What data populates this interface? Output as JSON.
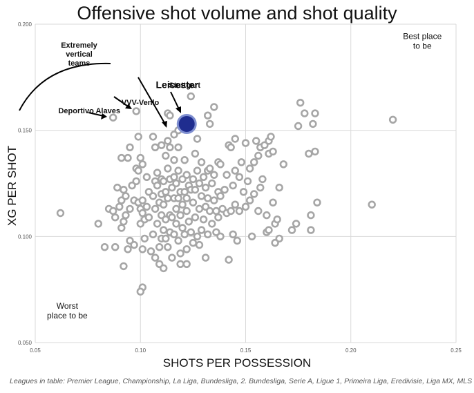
{
  "chart_data": {
    "type": "scatter",
    "title": "Offensive shot volume and shot quality",
    "xlabel": "SHOTS PER POSSESSION",
    "ylabel": "XG PER SHOT",
    "xlim": [
      0.05,
      0.25
    ],
    "ylim": [
      0.05,
      0.2
    ],
    "x_ticks": [
      0.05,
      0.1,
      0.15,
      0.2,
      0.25
    ],
    "x_tick_labels": [
      "0.05",
      "0.10",
      "0.15",
      "0.20",
      "0.25"
    ],
    "y_ticks": [
      0.05,
      0.1,
      0.15,
      0.2
    ],
    "y_tick_labels": [
      "0.050",
      "0.100",
      "0.150",
      "0.200"
    ],
    "grid": true,
    "colors": {
      "points": "#a6a6a6",
      "highlight_fill": "#1f2d8f",
      "highlight_stroke": "#7f8fd0",
      "grid": "#d9d9d9"
    },
    "highlight": {
      "label": "Leicester",
      "x": 0.122,
      "y": 0.153
    },
    "annotations": [
      {
        "text": "Stuttgart",
        "x": 0.121,
        "y": 0.17
      },
      {
        "text": "VVV-Venlo",
        "x": 0.091,
        "y": 0.162
      },
      {
        "text": "Deportivo Alaves",
        "x": 0.061,
        "y": 0.158
      },
      {
        "text": "Extremely vertical teams",
        "lines": [
          "Extremely",
          "vertical",
          "teams"
        ],
        "x": 0.061,
        "y": 0.189
      },
      {
        "text": "Best place to be",
        "lines": [
          "Best place",
          "to be"
        ],
        "x": 0.234,
        "y": 0.193
      },
      {
        "text": "Worst place to be",
        "lines": [
          "Worst",
          "place to be"
        ],
        "x": 0.058,
        "y": 0.066
      }
    ],
    "points": [
      [
        0.062,
        0.111
      ],
      [
        0.08,
        0.106
      ],
      [
        0.083,
        0.095
      ],
      [
        0.085,
        0.113
      ],
      [
        0.087,
        0.112
      ],
      [
        0.087,
        0.156
      ],
      [
        0.088,
        0.109
      ],
      [
        0.088,
        0.095
      ],
      [
        0.089,
        0.123
      ],
      [
        0.09,
        0.114
      ],
      [
        0.091,
        0.117
      ],
      [
        0.091,
        0.104
      ],
      [
        0.091,
        0.137
      ],
      [
        0.092,
        0.122
      ],
      [
        0.092,
        0.107
      ],
      [
        0.092,
        0.086
      ],
      [
        0.093,
        0.119
      ],
      [
        0.093,
        0.11
      ],
      [
        0.094,
        0.094
      ],
      [
        0.094,
        0.137
      ],
      [
        0.095,
        0.113
      ],
      [
        0.095,
        0.098
      ],
      [
        0.095,
        0.142
      ],
      [
        0.096,
        0.124
      ],
      [
        0.097,
        0.117
      ],
      [
        0.097,
        0.096
      ],
      [
        0.098,
        0.132
      ],
      [
        0.098,
        0.126
      ],
      [
        0.098,
        0.159
      ],
      [
        0.099,
        0.147
      ],
      [
        0.099,
        0.131
      ],
      [
        0.099,
        0.116
      ],
      [
        0.1,
        0.106
      ],
      [
        0.1,
        0.113
      ],
      [
        0.1,
        0.137
      ],
      [
        0.101,
        0.111
      ],
      [
        0.101,
        0.134
      ],
      [
        0.101,
        0.094
      ],
      [
        0.101,
        0.117
      ],
      [
        0.101,
        0.076
      ],
      [
        0.1,
        0.074
      ],
      [
        0.102,
        0.108
      ],
      [
        0.102,
        0.099
      ],
      [
        0.103,
        0.114
      ],
      [
        0.103,
        0.128
      ],
      [
        0.104,
        0.121
      ],
      [
        0.104,
        0.109
      ],
      [
        0.105,
        0.093
      ],
      [
        0.106,
        0.119
      ],
      [
        0.106,
        0.101
      ],
      [
        0.106,
        0.147
      ],
      [
        0.107,
        0.126
      ],
      [
        0.107,
        0.113
      ],
      [
        0.107,
        0.09
      ],
      [
        0.107,
        0.142
      ],
      [
        0.108,
        0.13
      ],
      [
        0.108,
        0.106
      ],
      [
        0.108,
        0.124
      ],
      [
        0.109,
        0.116
      ],
      [
        0.109,
        0.095
      ],
      [
        0.109,
        0.087
      ],
      [
        0.11,
        0.127
      ],
      [
        0.11,
        0.12
      ],
      [
        0.11,
        0.11
      ],
      [
        0.11,
        0.099
      ],
      [
        0.11,
        0.143
      ],
      [
        0.111,
        0.126
      ],
      [
        0.111,
        0.115
      ],
      [
        0.111,
        0.103
      ],
      [
        0.111,
        0.085
      ],
      [
        0.112,
        0.138
      ],
      [
        0.112,
        0.121
      ],
      [
        0.112,
        0.108
      ],
      [
        0.112,
        0.099
      ],
      [
        0.113,
        0.132
      ],
      [
        0.113,
        0.118
      ],
      [
        0.113,
        0.095
      ],
      [
        0.113,
        0.158
      ],
      [
        0.113,
        0.145
      ],
      [
        0.114,
        0.127
      ],
      [
        0.114,
        0.11
      ],
      [
        0.114,
        0.102
      ],
      [
        0.114,
        0.157
      ],
      [
        0.114,
        0.142
      ],
      [
        0.115,
        0.123
      ],
      [
        0.115,
        0.109
      ],
      [
        0.115,
        0.09
      ],
      [
        0.116,
        0.136
      ],
      [
        0.116,
        0.128
      ],
      [
        0.116,
        0.118
      ],
      [
        0.116,
        0.101
      ],
      [
        0.116,
        0.148
      ],
      [
        0.117,
        0.125
      ],
      [
        0.117,
        0.113
      ],
      [
        0.117,
        0.106
      ],
      [
        0.118,
        0.131
      ],
      [
        0.118,
        0.118
      ],
      [
        0.118,
        0.098
      ],
      [
        0.118,
        0.15
      ],
      [
        0.118,
        0.142
      ],
      [
        0.119,
        0.121
      ],
      [
        0.119,
        0.11
      ],
      [
        0.119,
        0.092
      ],
      [
        0.119,
        0.087
      ],
      [
        0.12,
        0.127
      ],
      [
        0.12,
        0.115
      ],
      [
        0.12,
        0.104
      ],
      [
        0.121,
        0.136
      ],
      [
        0.121,
        0.121
      ],
      [
        0.121,
        0.101
      ],
      [
        0.122,
        0.129
      ],
      [
        0.122,
        0.118
      ],
      [
        0.122,
        0.112
      ],
      [
        0.122,
        0.094
      ],
      [
        0.122,
        0.087
      ],
      [
        0.123,
        0.124
      ],
      [
        0.123,
        0.107
      ],
      [
        0.124,
        0.166
      ],
      [
        0.124,
        0.122
      ],
      [
        0.124,
        0.102
      ],
      [
        0.125,
        0.127
      ],
      [
        0.125,
        0.116
      ],
      [
        0.125,
        0.097
      ],
      [
        0.126,
        0.139
      ],
      [
        0.126,
        0.122
      ],
      [
        0.126,
        0.109
      ],
      [
        0.127,
        0.146
      ],
      [
        0.127,
        0.131
      ],
      [
        0.127,
        0.1
      ],
      [
        0.128,
        0.125
      ],
      [
        0.128,
        0.113
      ],
      [
        0.128,
        0.096
      ],
      [
        0.129,
        0.135
      ],
      [
        0.129,
        0.119
      ],
      [
        0.129,
        0.103
      ],
      [
        0.13,
        0.128
      ],
      [
        0.13,
        0.108
      ],
      [
        0.131,
        0.123
      ],
      [
        0.131,
        0.114
      ],
      [
        0.131,
        0.09
      ],
      [
        0.132,
        0.131
      ],
      [
        0.132,
        0.118
      ],
      [
        0.132,
        0.101
      ],
      [
        0.132,
        0.157
      ],
      [
        0.133,
        0.153
      ],
      [
        0.133,
        0.132
      ],
      [
        0.133,
        0.112
      ],
      [
        0.134,
        0.125
      ],
      [
        0.134,
        0.106
      ],
      [
        0.135,
        0.129
      ],
      [
        0.135,
        0.117
      ],
      [
        0.135,
        0.161
      ],
      [
        0.136,
        0.112
      ],
      [
        0.136,
        0.102
      ],
      [
        0.137,
        0.135
      ],
      [
        0.137,
        0.121
      ],
      [
        0.137,
        0.109
      ],
      [
        0.138,
        0.134
      ],
      [
        0.138,
        0.119
      ],
      [
        0.138,
        0.1
      ],
      [
        0.139,
        0.113
      ],
      [
        0.14,
        0.122
      ],
      [
        0.141,
        0.129
      ],
      [
        0.141,
        0.111
      ],
      [
        0.142,
        0.143
      ],
      [
        0.142,
        0.089
      ],
      [
        0.143,
        0.142
      ],
      [
        0.143,
        0.112
      ],
      [
        0.144,
        0.124
      ],
      [
        0.144,
        0.101
      ],
      [
        0.145,
        0.131
      ],
      [
        0.145,
        0.115
      ],
      [
        0.145,
        0.146
      ],
      [
        0.146,
        0.098
      ],
      [
        0.147,
        0.128
      ],
      [
        0.147,
        0.112
      ],
      [
        0.148,
        0.135
      ],
      [
        0.149,
        0.121
      ],
      [
        0.15,
        0.144
      ],
      [
        0.15,
        0.114
      ],
      [
        0.151,
        0.126
      ],
      [
        0.152,
        0.117
      ],
      [
        0.152,
        0.132
      ],
      [
        0.153,
        0.1
      ],
      [
        0.154,
        0.12
      ],
      [
        0.154,
        0.135
      ],
      [
        0.155,
        0.145
      ],
      [
        0.156,
        0.138
      ],
      [
        0.156,
        0.112
      ],
      [
        0.157,
        0.123
      ],
      [
        0.157,
        0.142
      ],
      [
        0.158,
        0.127
      ],
      [
        0.159,
        0.143
      ],
      [
        0.16,
        0.11
      ],
      [
        0.16,
        0.102
      ],
      [
        0.161,
        0.139
      ],
      [
        0.161,
        0.103
      ],
      [
        0.161,
        0.145
      ],
      [
        0.162,
        0.147
      ],
      [
        0.163,
        0.116
      ],
      [
        0.163,
        0.14
      ],
      [
        0.164,
        0.106
      ],
      [
        0.164,
        0.097
      ],
      [
        0.165,
        0.108
      ],
      [
        0.166,
        0.099
      ],
      [
        0.166,
        0.123
      ],
      [
        0.168,
        0.134
      ],
      [
        0.172,
        0.103
      ],
      [
        0.174,
        0.106
      ],
      [
        0.175,
        0.152
      ],
      [
        0.176,
        0.163
      ],
      [
        0.178,
        0.158
      ],
      [
        0.18,
        0.139
      ],
      [
        0.181,
        0.103
      ],
      [
        0.181,
        0.11
      ],
      [
        0.182,
        0.153
      ],
      [
        0.183,
        0.158
      ],
      [
        0.183,
        0.14
      ],
      [
        0.184,
        0.116
      ],
      [
        0.21,
        0.115
      ],
      [
        0.22,
        0.155
      ]
    ]
  },
  "footnote": "Leagues in table: Premier League, Championship, La Liga, Bundesliga, 2. Bundesliga, Serie A, Ligue 1, Primeira Liga, Eredivisie, Liga MX, MLS"
}
